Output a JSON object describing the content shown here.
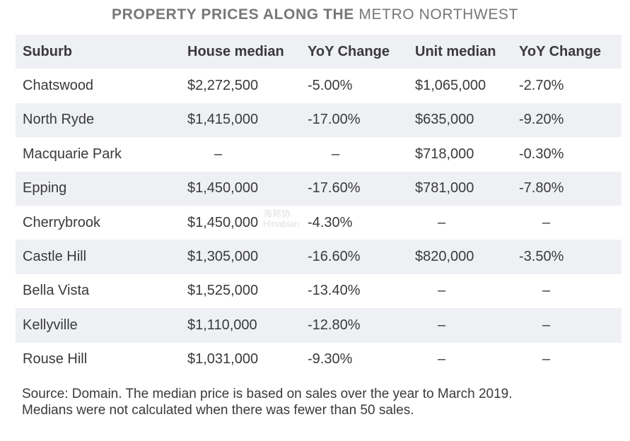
{
  "chart_data": {
    "type": "table",
    "title": {
      "bold_part": "PROPERTY PRICES ALONG THE",
      "light_part": "METRO NORTHWEST"
    },
    "columns": [
      "Suburb",
      "House median",
      "YoY Change",
      "Unit median",
      "YoY Change"
    ],
    "rows": [
      [
        "Chatswood",
        "$2,272,500",
        "-5.00%",
        "$1,065,000",
        "-2.70%"
      ],
      [
        "North Ryde",
        "$1,415,000",
        "-17.00%",
        "$635,000",
        "-9.20%"
      ],
      [
        "Macquarie Park",
        "–",
        "–",
        "$718,000",
        "-0.30%"
      ],
      [
        "Epping",
        "$1,450,000",
        "-17.60%",
        "$781,000",
        "-7.80%"
      ],
      [
        "Cherrybrook",
        "$1,450,000",
        "-4.30%",
        "–",
        "–"
      ],
      [
        "Castle Hill",
        "$1,305,000",
        "-16.60%",
        "$820,000",
        "-3.50%"
      ],
      [
        "Bella Vista",
        "$1,525,000",
        "-13.40%",
        "–",
        "–"
      ],
      [
        "Kellyville",
        "$1,110,000",
        "-12.80%",
        "–",
        "–"
      ],
      [
        "Rouse Hill",
        "$1,031,000",
        "-9.30%",
        "–",
        "–"
      ]
    ]
  },
  "source_note": {
    "line1": "Source: Domain. The median price is based on sales over the year to March 2019.",
    "line2": "Medians were not calculated when there was fewer than 50 sales."
  },
  "watermark": {
    "line1": "海邦协",
    "line2": "Hinabian"
  },
  "colors": {
    "stripe": "#eef0f4",
    "text": "#3a3a3a",
    "title": "#777777"
  }
}
